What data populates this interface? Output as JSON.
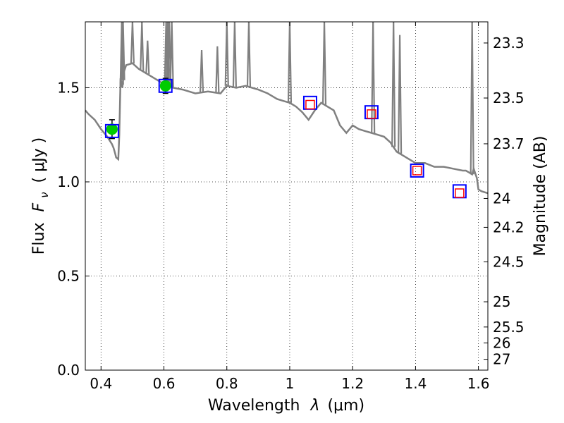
{
  "chart_data": {
    "type": "line",
    "xlabel_text": "Wavelength",
    "xlabel_math": "λ",
    "xlabel_unit": "(μm)",
    "ylabel_text": "Flux",
    "ylabel_math": "F",
    "ylabel_sub": "ν",
    "ylabel_unit": "( μJy )",
    "y2label": "Magnitude (AB)",
    "xlim": [
      0.35,
      1.63
    ],
    "ylim": [
      0.0,
      1.85
    ],
    "grid": true,
    "xticks": [
      {
        "v": 0.4,
        "label": "0.4"
      },
      {
        "v": 0.6,
        "label": "0.6"
      },
      {
        "v": 0.8,
        "label": "0.8"
      },
      {
        "v": 1.0,
        "label": "1"
      },
      {
        "v": 1.2,
        "label": "1.2"
      },
      {
        "v": 1.4,
        "label": "1.4"
      },
      {
        "v": 1.6,
        "label": "1.6"
      }
    ],
    "yticks": [
      {
        "v": 0.0,
        "label": "0.0"
      },
      {
        "v": 0.5,
        "label": "0.5"
      },
      {
        "v": 1.0,
        "label": "1.0"
      },
      {
        "v": 1.5,
        "label": "1.5"
      }
    ],
    "mag_ticks": [
      {
        "mag": 23.3,
        "label": "23.3"
      },
      {
        "mag": 23.5,
        "label": "23.5"
      },
      {
        "mag": 23.7,
        "label": "23.7"
      },
      {
        "mag": 24.0,
        "label": "24"
      },
      {
        "mag": 24.2,
        "label": "24.2"
      },
      {
        "mag": 24.5,
        "label": "24.5"
      },
      {
        "mag": 25.0,
        "label": "25"
      },
      {
        "mag": 25.5,
        "label": "25.5"
      },
      {
        "mag": 26.0,
        "label": "26"
      },
      {
        "mag": 27.0,
        "label": "27"
      }
    ],
    "model_sed": {
      "color": "#808080",
      "points": [
        [
          0.35,
          1.38
        ],
        [
          0.36,
          1.36
        ],
        [
          0.38,
          1.33
        ],
        [
          0.4,
          1.28
        ],
        [
          0.42,
          1.24
        ],
        [
          0.435,
          1.2
        ],
        [
          0.44,
          1.18
        ],
        [
          0.445,
          1.15
        ],
        [
          0.448,
          1.13
        ],
        [
          0.455,
          1.12
        ],
        [
          0.458,
          1.25
        ],
        [
          0.462,
          1.55
        ],
        [
          0.468,
          1.5
        ],
        [
          0.472,
          1.58
        ],
        [
          0.48,
          1.62
        ],
        [
          0.5,
          1.63
        ],
        [
          0.52,
          1.6
        ],
        [
          0.54,
          1.58
        ],
        [
          0.56,
          1.56
        ],
        [
          0.58,
          1.54
        ],
        [
          0.6,
          1.52
        ],
        [
          0.63,
          1.5
        ],
        [
          0.66,
          1.49
        ],
        [
          0.7,
          1.47
        ],
        [
          0.74,
          1.48
        ],
        [
          0.78,
          1.47
        ],
        [
          0.8,
          1.51
        ],
        [
          0.83,
          1.5
        ],
        [
          0.86,
          1.51
        ],
        [
          0.9,
          1.49
        ],
        [
          0.93,
          1.47
        ],
        [
          0.96,
          1.44
        ],
        [
          0.98,
          1.43
        ],
        [
          1.0,
          1.42
        ],
        [
          1.02,
          1.4
        ],
        [
          1.04,
          1.37
        ],
        [
          1.06,
          1.33
        ],
        [
          1.08,
          1.38
        ],
        [
          1.1,
          1.42
        ],
        [
          1.12,
          1.4
        ],
        [
          1.14,
          1.38
        ],
        [
          1.16,
          1.3
        ],
        [
          1.18,
          1.26
        ],
        [
          1.2,
          1.3
        ],
        [
          1.22,
          1.28
        ],
        [
          1.24,
          1.27
        ],
        [
          1.26,
          1.26
        ],
        [
          1.28,
          1.25
        ],
        [
          1.3,
          1.24
        ],
        [
          1.32,
          1.21
        ],
        [
          1.34,
          1.16
        ],
        [
          1.36,
          1.14
        ],
        [
          1.38,
          1.12
        ],
        [
          1.4,
          1.1
        ],
        [
          1.43,
          1.1
        ],
        [
          1.46,
          1.08
        ],
        [
          1.49,
          1.08
        ],
        [
          1.52,
          1.07
        ],
        [
          1.55,
          1.06
        ],
        [
          1.56,
          1.06
        ],
        [
          1.57,
          1.05
        ],
        [
          1.58,
          1.04
        ],
        [
          1.585,
          1.07
        ],
        [
          1.595,
          1.02
        ],
        [
          1.6,
          0.96
        ],
        [
          1.61,
          0.95
        ],
        [
          1.63,
          0.94
        ]
      ],
      "emission_lines": [
        [
          0.466,
          1.85
        ],
        [
          0.47,
          1.85
        ],
        [
          0.5,
          1.85
        ],
        [
          0.53,
          1.85
        ],
        [
          0.548,
          1.75
        ],
        [
          0.607,
          1.85
        ],
        [
          0.612,
          1.85
        ],
        [
          0.617,
          1.85
        ],
        [
          0.625,
          1.85
        ],
        [
          0.72,
          1.7
        ],
        [
          0.77,
          1.72
        ],
        [
          0.8,
          1.85
        ],
        [
          0.825,
          1.85
        ],
        [
          0.87,
          1.85
        ],
        [
          1.0,
          1.85
        ],
        [
          1.11,
          1.85
        ],
        [
          1.265,
          1.85
        ],
        [
          1.33,
          1.85
        ],
        [
          1.35,
          1.78
        ],
        [
          1.58,
          1.85
        ]
      ]
    },
    "observed_green": {
      "color": "#00cc00",
      "points": [
        {
          "x": 0.435,
          "y": 1.28,
          "err": 0.05
        },
        {
          "x": 0.605,
          "y": 1.51,
          "err": 0.04
        }
      ]
    },
    "model_blue_squares": {
      "color": "#0000ff",
      "points": [
        [
          0.435,
          1.27
        ],
        [
          0.605,
          1.51
        ],
        [
          1.065,
          1.42
        ],
        [
          1.26,
          1.37
        ],
        [
          1.405,
          1.06
        ],
        [
          1.54,
          0.95
        ]
      ]
    },
    "model_red_squares": {
      "color": "#ff0000",
      "points": [
        [
          1.065,
          1.41
        ],
        [
          1.26,
          1.36
        ],
        [
          1.405,
          1.06
        ],
        [
          1.54,
          0.94
        ]
      ]
    }
  }
}
